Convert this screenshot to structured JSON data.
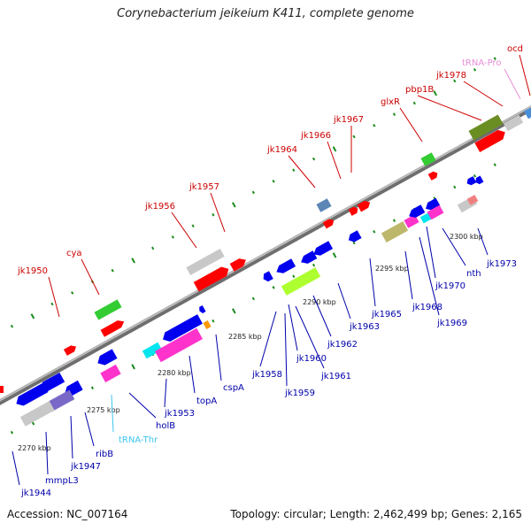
{
  "title": "Corynebacterium jeikeium K411, complete genome",
  "footer": {
    "accession": "Accession: NC_007164",
    "summary": "Topology: circular; Length: 2,462,499 bp; Genes: 2,165"
  },
  "colors": {
    "forward_label": "#cc0000",
    "reverse_label": "#0000aa",
    "trna_pro": "#e78fd6",
    "trna_thr": "#3cc5f0",
    "backbone": "#8c8c8c",
    "tick": "#1a8c1a"
  },
  "scale_labels": [
    "2270 kbp",
    "2275 kbp",
    "2280 kbp",
    "2285 kbp",
    "2290 kbp",
    "2295 kbp",
    "2300 kbp"
  ],
  "forward_genes": [
    {
      "name": "jk1950"
    },
    {
      "name": "cya"
    },
    {
      "name": "jk1956"
    },
    {
      "name": "jk1957"
    },
    {
      "name": "jk1964"
    },
    {
      "name": "jk1966"
    },
    {
      "name": "jk1967"
    },
    {
      "name": "glxR"
    },
    {
      "name": "pbp1B"
    },
    {
      "name": "jk1978"
    },
    {
      "name": "tRNA-Pro"
    },
    {
      "name": "ocd"
    }
  ],
  "reverse_genes": [
    {
      "name": "jk1944"
    },
    {
      "name": "mmpL3"
    },
    {
      "name": "jk1947"
    },
    {
      "name": "ribB"
    },
    {
      "name": "tRNA-Thr"
    },
    {
      "name": "holB"
    },
    {
      "name": "jk1953"
    },
    {
      "name": "topA"
    },
    {
      "name": "cspA"
    },
    {
      "name": "jk1958"
    },
    {
      "name": "jk1959"
    },
    {
      "name": "jk1960"
    },
    {
      "name": "jk1961"
    },
    {
      "name": "jk1962"
    },
    {
      "name": "jk1963"
    },
    {
      "name": "jk1965"
    },
    {
      "name": "jk1968"
    },
    {
      "name": "jk1969"
    },
    {
      "name": "jk1970"
    },
    {
      "name": "nth"
    },
    {
      "name": "jk1973"
    }
  ]
}
